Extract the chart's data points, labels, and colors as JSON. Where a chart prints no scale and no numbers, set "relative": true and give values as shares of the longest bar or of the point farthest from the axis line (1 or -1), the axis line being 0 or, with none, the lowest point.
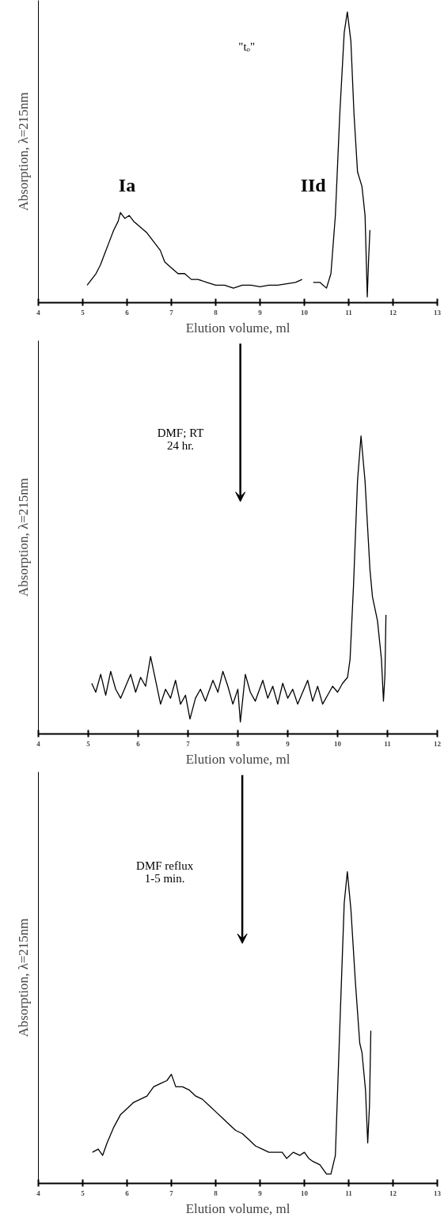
{
  "chart_data": [
    {
      "type": "line",
      "relative": true,
      "color": "#000000",
      "xlabel": "Elution volume, ml",
      "ylabel": "Absorption, λ=215nm",
      "xlim": [
        4,
        13
      ],
      "xticks": [
        4,
        5,
        6,
        7,
        8,
        9,
        10,
        11,
        12,
        13
      ],
      "annotations": [
        "\"tₒ\"",
        "Ia",
        "IId"
      ],
      "x": [
        5.1,
        5.2,
        5.3,
        5.4,
        5.5,
        5.6,
        5.7,
        5.8,
        5.85,
        5.95,
        6.05,
        6.15,
        6.3,
        6.45,
        6.6,
        6.75,
        6.85,
        7.0,
        7.15,
        7.3,
        7.45,
        7.6,
        7.8,
        8.0,
        8.2,
        8.4,
        8.6,
        8.8,
        9.0,
        9.2,
        9.4,
        9.6,
        9.8,
        9.95,
        10.0,
        10.2,
        10.35,
        10.5,
        10.6,
        10.7,
        10.8,
        10.9,
        10.97,
        11.05,
        11.12,
        11.2,
        11.3,
        11.37,
        11.42,
        11.45,
        11.48
      ],
      "values": [
        0.06,
        0.08,
        0.1,
        0.13,
        0.17,
        0.21,
        0.25,
        0.28,
        0.31,
        0.29,
        0.3,
        0.28,
        0.26,
        0.24,
        0.21,
        0.18,
        0.14,
        0.12,
        0.1,
        0.1,
        0.08,
        0.08,
        0.07,
        0.06,
        0.06,
        0.05,
        0.06,
        0.06,
        0.055,
        0.06,
        0.06,
        0.065,
        0.07,
        0.08,
        null,
        0.07,
        0.07,
        0.05,
        0.1,
        0.3,
        0.65,
        0.93,
        1.0,
        0.9,
        0.65,
        0.45,
        0.4,
        0.3,
        0.02,
        0.15,
        0.25
      ]
    },
    {
      "type": "line",
      "relative": true,
      "color": "#000000",
      "xlabel": "Elution volume, ml",
      "ylabel": "Absorption, λ=215nm",
      "xlim": [
        4,
        12
      ],
      "xticks": [
        4,
        5,
        6,
        7,
        8,
        9,
        10,
        11,
        12
      ],
      "annotations": [
        "DMF; RT\n24 hr."
      ],
      "x": [
        5.07,
        5.15,
        5.25,
        5.35,
        5.45,
        5.55,
        5.65,
        5.75,
        5.85,
        5.95,
        6.05,
        6.15,
        6.25,
        6.35,
        6.45,
        6.55,
        6.65,
        6.75,
        6.85,
        6.95,
        7.04,
        7.15,
        7.25,
        7.35,
        7.5,
        7.6,
        7.7,
        7.8,
        7.9,
        8.0,
        8.05,
        8.15,
        8.25,
        8.35,
        8.5,
        8.6,
        8.7,
        8.8,
        8.9,
        9.0,
        9.1,
        9.2,
        9.3,
        9.4,
        9.5,
        9.6,
        9.7,
        9.8,
        9.9,
        10.0,
        10.1,
        10.2,
        10.25,
        10.32,
        10.4,
        10.47,
        10.55,
        10.65,
        10.7,
        10.8,
        10.88,
        10.92,
        10.95,
        10.97
      ],
      "values": [
        0.17,
        0.14,
        0.2,
        0.13,
        0.21,
        0.15,
        0.12,
        0.16,
        0.2,
        0.14,
        0.19,
        0.16,
        0.26,
        0.18,
        0.1,
        0.15,
        0.12,
        0.18,
        0.1,
        0.13,
        0.05,
        0.12,
        0.15,
        0.11,
        0.18,
        0.14,
        0.21,
        0.16,
        0.1,
        0.15,
        0.04,
        0.2,
        0.14,
        0.11,
        0.18,
        0.12,
        0.16,
        0.1,
        0.17,
        0.12,
        0.15,
        0.1,
        0.14,
        0.18,
        0.11,
        0.16,
        0.1,
        0.13,
        0.16,
        0.14,
        0.17,
        0.19,
        0.25,
        0.5,
        0.85,
        1.0,
        0.85,
        0.55,
        0.46,
        0.38,
        0.25,
        0.11,
        0.2,
        0.4
      ]
    },
    {
      "type": "line",
      "relative": true,
      "color": "#000000",
      "xlabel": "Elution volume, ml",
      "ylabel": "Absorption, λ=215nm",
      "xlim": [
        4,
        13
      ],
      "xticks": [
        4,
        5,
        6,
        7,
        8,
        9,
        10,
        11,
        12,
        13
      ],
      "annotations": [
        "DMF reflux\n1-5 min."
      ],
      "x": [
        5.22,
        5.35,
        5.45,
        5.55,
        5.7,
        5.85,
        6.0,
        6.15,
        6.3,
        6.45,
        6.6,
        6.75,
        6.9,
        7.0,
        7.1,
        7.25,
        7.4,
        7.55,
        7.7,
        7.85,
        8.0,
        8.15,
        8.3,
        8.45,
        8.6,
        8.75,
        8.9,
        9.05,
        9.2,
        9.35,
        9.5,
        9.6,
        9.75,
        9.9,
        10.0,
        10.1,
        10.2,
        10.35,
        10.5,
        10.6,
        10.7,
        10.8,
        10.9,
        10.97,
        11.05,
        11.15,
        11.25,
        11.3,
        11.38,
        11.43,
        11.47,
        11.5
      ],
      "values": [
        0.1,
        0.11,
        0.09,
        0.13,
        0.18,
        0.22,
        0.24,
        0.26,
        0.27,
        0.28,
        0.31,
        0.32,
        0.33,
        0.35,
        0.31,
        0.31,
        0.3,
        0.28,
        0.27,
        0.25,
        0.23,
        0.21,
        0.19,
        0.17,
        0.16,
        0.14,
        0.12,
        0.11,
        0.1,
        0.1,
        0.1,
        0.08,
        0.1,
        0.09,
        0.1,
        0.08,
        0.07,
        0.06,
        0.03,
        0.03,
        0.09,
        0.5,
        0.9,
        1.0,
        0.88,
        0.65,
        0.45,
        0.42,
        0.3,
        0.13,
        0.25,
        0.49
      ]
    }
  ]
}
